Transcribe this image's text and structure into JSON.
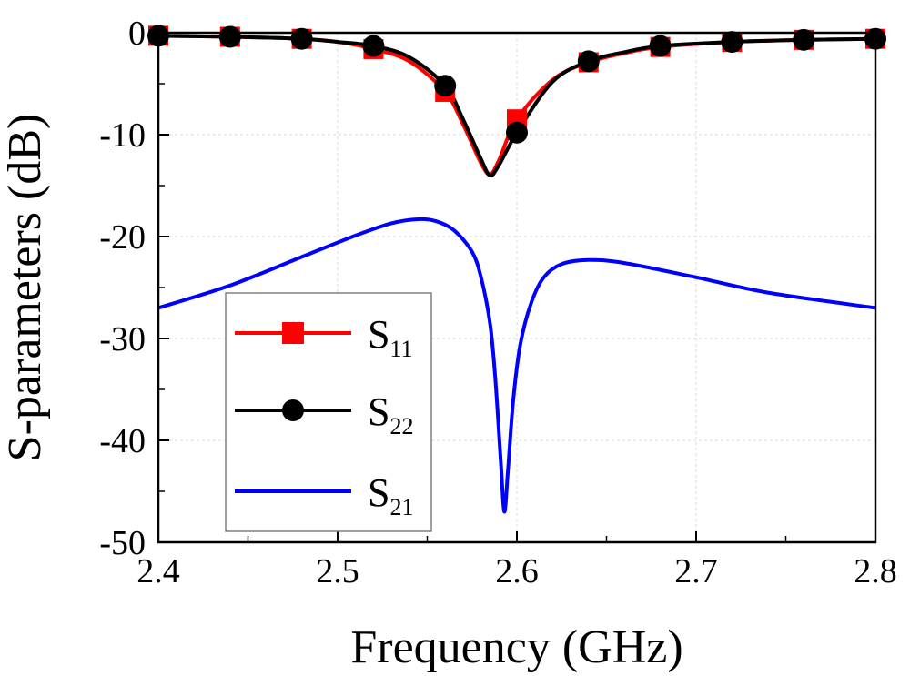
{
  "chart_data": {
    "type": "line",
    "xlabel": "Frequency (GHz)",
    "ylabel": "S-parameters (dB)",
    "xlim": [
      2.4,
      2.8
    ],
    "ylim": [
      -50,
      0
    ],
    "xticks": [
      "2.4",
      "2.5",
      "2.6",
      "2.7",
      "2.8"
    ],
    "xtick_values": [
      2.4,
      2.5,
      2.6,
      2.7,
      2.8
    ],
    "yticks": [
      "0",
      "-10",
      "-20",
      "-30",
      "-40",
      "-50"
    ],
    "ytick_values": [
      0,
      -10,
      -20,
      -30,
      -40,
      -50
    ],
    "grid": true,
    "legend_position": "bottom-left",
    "series": [
      {
        "name": "S11",
        "label_main": "S",
        "label_sub": "11",
        "color": "#ff0000",
        "marker": "square",
        "x": [
          2.4,
          2.44,
          2.48,
          2.5,
          2.52,
          2.54,
          2.56,
          2.57,
          2.58,
          2.585,
          2.59,
          2.6,
          2.62,
          2.64,
          2.66,
          2.68,
          2.72,
          2.76,
          2.8
        ],
        "y": [
          -0.3,
          -0.4,
          -0.6,
          -0.9,
          -1.6,
          -2.8,
          -5.8,
          -9.0,
          -12.8,
          -13.9,
          -12.5,
          -8.5,
          -4.6,
          -2.9,
          -2.0,
          -1.4,
          -0.9,
          -0.7,
          -0.6
        ],
        "marker_x": [
          2.4,
          2.44,
          2.48,
          2.52,
          2.56,
          2.6,
          2.64,
          2.68,
          2.72,
          2.76,
          2.8
        ],
        "marker_y": [
          -0.3,
          -0.4,
          -0.6,
          -1.6,
          -5.8,
          -8.5,
          -2.9,
          -1.4,
          -0.9,
          -0.7,
          -0.6
        ]
      },
      {
        "name": "S22",
        "label_main": "S",
        "label_sub": "22",
        "color": "#000000",
        "marker": "circle",
        "x": [
          2.4,
          2.44,
          2.48,
          2.5,
          2.52,
          2.54,
          2.56,
          2.57,
          2.58,
          2.585,
          2.59,
          2.6,
          2.62,
          2.64,
          2.66,
          2.68,
          2.72,
          2.76,
          2.8
        ],
        "y": [
          -0.3,
          -0.4,
          -0.6,
          -0.9,
          -1.3,
          -2.4,
          -5.2,
          -8.5,
          -12.4,
          -14.0,
          -13.0,
          -9.8,
          -4.8,
          -2.8,
          -1.9,
          -1.3,
          -0.9,
          -0.7,
          -0.6
        ],
        "marker_x": [
          2.4,
          2.44,
          2.48,
          2.52,
          2.56,
          2.6,
          2.64,
          2.68,
          2.72,
          2.76,
          2.8
        ],
        "marker_y": [
          -0.3,
          -0.4,
          -0.6,
          -1.3,
          -5.2,
          -9.8,
          -2.8,
          -1.3,
          -0.9,
          -0.7,
          -0.6
        ]
      },
      {
        "name": "S21",
        "label_main": "S",
        "label_sub": "21",
        "color": "#0000ff",
        "marker": "none",
        "x": [
          2.4,
          2.44,
          2.48,
          2.51,
          2.53,
          2.545,
          2.555,
          2.565,
          2.575,
          2.58,
          2.585,
          2.588,
          2.591,
          2.593,
          2.595,
          2.598,
          2.602,
          2.608,
          2.615,
          2.625,
          2.64,
          2.66,
          2.7,
          2.74,
          2.8
        ],
        "y": [
          -27.0,
          -24.8,
          -22.0,
          -19.9,
          -18.7,
          -18.3,
          -18.5,
          -19.4,
          -21.5,
          -24.0,
          -28.5,
          -34.0,
          -42.0,
          -47.0,
          -43.0,
          -36.0,
          -30.5,
          -26.5,
          -24.0,
          -22.7,
          -22.3,
          -22.6,
          -24.0,
          -25.5,
          -27.0
        ]
      }
    ]
  }
}
